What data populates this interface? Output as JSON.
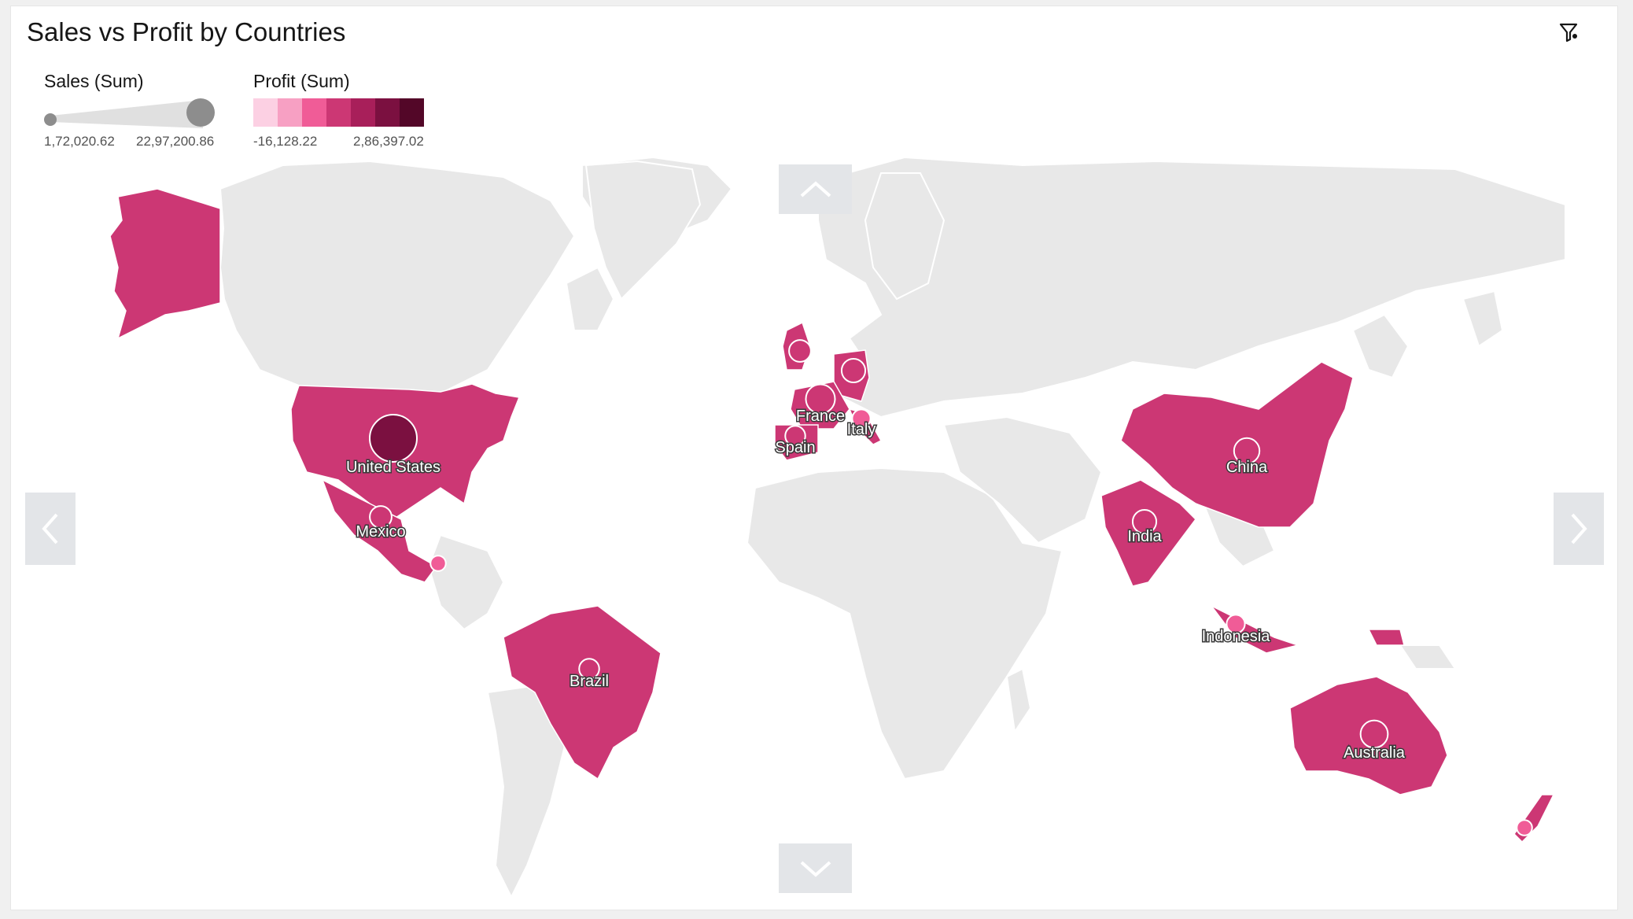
{
  "title": "Sales vs Profit by Countries",
  "colors": {
    "land": "#e8e8e8",
    "highlight": "#cc3774",
    "ramp": [
      "#fcd0e3",
      "#f7a0c3",
      "#f05c97",
      "#cc3774",
      "#a81f5a",
      "#7b1040",
      "#530728"
    ]
  },
  "legend": {
    "size": {
      "title": "Sales (Sum)",
      "min": "1,72,020.62",
      "max": "22,97,200.86"
    },
    "color": {
      "title": "Profit (Sum)",
      "min": "-16,128.22",
      "max": "2,86,397.02"
    }
  },
  "toolbar": {
    "filter_icon": "filter-icon"
  },
  "navigation": {
    "up": "chevron-up-icon",
    "down": "chevron-down-icon",
    "left": "chevron-left-icon",
    "right": "chevron-right-icon"
  },
  "countries": [
    {
      "name": "United States",
      "show_label": true,
      "size_level": 1.0,
      "color_level": 1.0
    },
    {
      "name": "Mexico",
      "show_label": true,
      "size_level": 0.3,
      "color_level": 0.55
    },
    {
      "name": "Brazil",
      "show_label": true,
      "size_level": 0.25,
      "color_level": 0.5
    },
    {
      "name": "France",
      "show_label": true,
      "size_level": 0.5,
      "color_level": 0.55
    },
    {
      "name": "Spain",
      "show_label": true,
      "size_level": 0.25,
      "color_level": 0.5
    },
    {
      "name": "Italy",
      "show_label": true,
      "size_level": 0.2,
      "color_level": 0.3
    },
    {
      "name": "China",
      "show_label": true,
      "size_level": 0.4,
      "color_level": 0.55
    },
    {
      "name": "India",
      "show_label": true,
      "size_level": 0.35,
      "color_level": 0.55
    },
    {
      "name": "Indonesia",
      "show_label": true,
      "size_level": 0.2,
      "color_level": 0.3
    },
    {
      "name": "Australia",
      "show_label": true,
      "size_level": 0.45,
      "color_level": 0.55
    },
    {
      "name": "",
      "show_label": false,
      "size_level": 0.3,
      "color_level": 0.5
    },
    {
      "name": "",
      "show_label": false,
      "size_level": 0.35,
      "color_level": 0.55
    },
    {
      "name": "",
      "show_label": false,
      "size_level": 0.12,
      "color_level": 0.3
    },
    {
      "name": "",
      "show_label": false,
      "size_level": 0.12,
      "color_level": 0.3
    }
  ]
}
